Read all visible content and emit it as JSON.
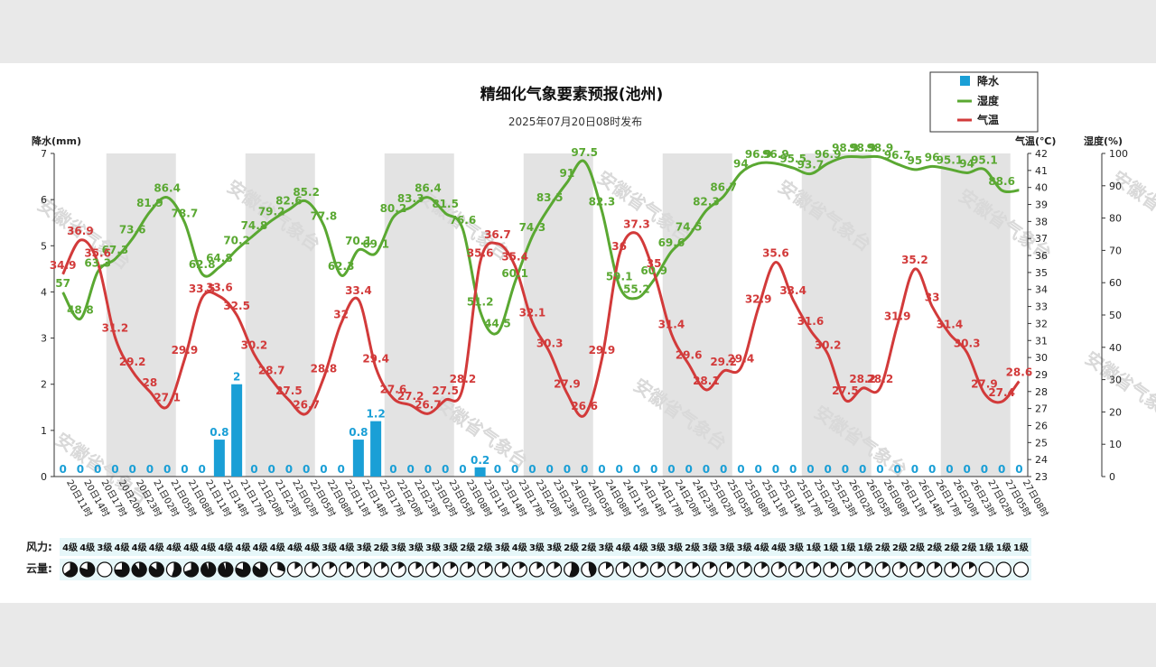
{
  "chart_data": {
    "type": "line",
    "title": "精细化气象要素预报(池州)",
    "subtitle": "2025年07月20日08时发布",
    "watermark": "安徽省气象台",
    "ylabel_left": "降水(mm)",
    "ylabel_temp": "气温(℃)",
    "ylabel_hum": "湿度(%)",
    "ylim_rain": [
      0,
      7
    ],
    "ylim_temp": [
      23,
      42
    ],
    "ylim_hum": [
      0,
      100
    ],
    "rain_ticks": [
      "0",
      "1",
      "2",
      "3",
      "4",
      "5",
      "6",
      "7"
    ],
    "temp_ticks": [
      "23",
      "24",
      "25",
      "26",
      "27",
      "28",
      "29",
      "30",
      "31",
      "32",
      "33",
      "34",
      "35",
      "36",
      "37",
      "38",
      "39",
      "40",
      "41",
      "42"
    ],
    "hum_ticks": [
      "0",
      "10",
      "20",
      "30",
      "40",
      "50",
      "60",
      "70",
      "80",
      "90",
      "100"
    ],
    "legend": [
      "降水",
      "湿度",
      "气温"
    ],
    "categories": [
      "20日11时",
      "20日14时",
      "20日17时",
      "20日20时",
      "20日23时",
      "21日02时",
      "21日05时",
      "21日08时",
      "21日11时",
      "21日14时",
      "21日17时",
      "21日20时",
      "21日23时",
      "22日02时",
      "22日05时",
      "22日08时",
      "22日11时",
      "22日14时",
      "22日17时",
      "22日20时",
      "22日23时",
      "23日02时",
      "23日05时",
      "23日08时",
      "23日11时",
      "23日14时",
      "23日17时",
      "23日20时",
      "23日23时",
      "24日02时",
      "24日05时",
      "24日08时",
      "24日11时",
      "24日14时",
      "24日17时",
      "24日20时",
      "24日23时",
      "25日02时",
      "25日05时",
      "25日08时",
      "25日11时",
      "25日14时",
      "25日17时",
      "25日20时",
      "25日23时",
      "26日02时",
      "26日05时",
      "26日08时",
      "26日11时",
      "26日14时",
      "26日17时",
      "26日20时",
      "26日23时",
      "27日02时",
      "27日05时",
      "27日08时"
    ],
    "series": [
      {
        "name": "降水",
        "type": "bar",
        "color": "#1a9fd6",
        "values": [
          0,
          0,
          0,
          0,
          0,
          0,
          0,
          0,
          0,
          0.8,
          2,
          0,
          0,
          0,
          0,
          0,
          0,
          0.8,
          1.2,
          0,
          0,
          0,
          0,
          0,
          0.2,
          0,
          0,
          0,
          0,
          0,
          0,
          0,
          0,
          0,
          0,
          0,
          0,
          0,
          0,
          0,
          0,
          0,
          0,
          0,
          0,
          0,
          0,
          0,
          0,
          0,
          0,
          0,
          0,
          0,
          0,
          0
        ],
        "labels": [
          "0",
          "0",
          "0",
          "0",
          "0",
          "0",
          "0",
          "0",
          "0",
          "0.8",
          "2",
          "0",
          "0",
          "0",
          "0",
          "0",
          "0",
          "0.8",
          "1.2",
          "0",
          "0",
          "0",
          "0",
          "0",
          "0.2",
          "0",
          "0",
          "0",
          "0",
          "0",
          "0",
          "0",
          "0",
          "0",
          "0",
          "0",
          "0",
          "0",
          "0",
          "0",
          "0",
          "0",
          "0",
          "0",
          "0",
          "0",
          "0",
          "0",
          "0",
          "0",
          "0",
          "0",
          "0",
          "0",
          "0",
          "0"
        ]
      },
      {
        "name": "湿度",
        "type": "line",
        "color": "#5aa832",
        "values": [
          57,
          48.8,
          63.3,
          67.3,
          73.6,
          81.9,
          86.4,
          78.7,
          62.8,
          64.8,
          70.2,
          74.8,
          79.2,
          82.6,
          85.2,
          77.8,
          62.3,
          70.1,
          69.1,
          80.2,
          83.3,
          86.4,
          81.5,
          76.6,
          51.2,
          44.5,
          60.1,
          74.3,
          83.5,
          91,
          97.5,
          82.3,
          59.1,
          55.2,
          60.9,
          69.6,
          74.5,
          82.3,
          86.7,
          94,
          96.9,
          96.9,
          95.5,
          93.7,
          96.9,
          98.9,
          98.9,
          98.9,
          96.7,
          95,
          96,
          95.1,
          94,
          95.1,
          88.6,
          88.6
        ],
        "labels": [
          "57",
          "48.8",
          "63.3",
          "67.3",
          "73.6",
          "81.9",
          "86.4",
          "78.7",
          "62.8",
          "64.8",
          "70.2",
          "74.8",
          "79.2",
          "82.6",
          "85.2",
          "77.8",
          "62.3",
          "70.1",
          "69.1",
          "80.2",
          "83.3",
          "86.4",
          "81.5",
          "76.6",
          "51.2",
          "44.5",
          "60.1",
          "74.3",
          "83.5",
          "91",
          "97.5",
          "82.3",
          "59.1",
          "55.2",
          "60.9",
          "69.6",
          "74.5",
          "82.3",
          "86.7",
          "94",
          "96.9",
          "96.9",
          "95.5",
          "93.7",
          "96.9",
          "98.9",
          "98.9",
          "98.9",
          "96.7",
          "95",
          "96",
          "95.1",
          "94",
          "95.1",
          "88.6",
          ""
        ]
      },
      {
        "name": "气温",
        "type": "line",
        "color": "#d23a3a",
        "values": [
          34.9,
          36.9,
          35.6,
          31.2,
          29.2,
          28,
          27.1,
          29.9,
          33.5,
          33.6,
          32.5,
          30.2,
          28.7,
          27.5,
          26.7,
          28.8,
          32,
          33.4,
          29.4,
          27.6,
          27.2,
          26.7,
          27.5,
          28.2,
          35.6,
          36.7,
          35.4,
          32.1,
          30.3,
          27.9,
          26.6,
          29.9,
          36,
          37.3,
          35,
          31.4,
          29.6,
          28.1,
          29.2,
          29.4,
          32.9,
          35.6,
          33.4,
          31.6,
          30.2,
          27.5,
          28.2,
          28.2,
          31.9,
          35.2,
          33,
          31.4,
          30.3,
          27.9,
          27.4,
          28.6
        ],
        "labels": [
          "34.9",
          "36.9",
          "35.6",
          "31.2",
          "29.2",
          "28",
          "27.1",
          "29.9",
          "33.5",
          "33.6",
          "32.5",
          "30.2",
          "28.7",
          "27.5",
          "26.7",
          "28.8",
          "32",
          "33.4",
          "29.4",
          "27.6",
          "27.2",
          "26.7",
          "27.5",
          "28.2",
          "35.6",
          "36.7",
          "35.4",
          "32.1",
          "30.3",
          "27.9",
          "26.6",
          "29.9",
          "36",
          "37.3",
          "35",
          "31.4",
          "29.6",
          "28.1",
          "29.2",
          "29.4",
          "32.9",
          "35.6",
          "33.4",
          "31.6",
          "30.2",
          "27.5",
          "28.2",
          "28.2",
          "31.9",
          "35.2",
          "33",
          "31.4",
          "30.3",
          "27.9",
          "27.4",
          "28.6"
        ]
      }
    ],
    "wind_label": "风力:",
    "wind": [
      "4级",
      "4级",
      "3级",
      "4级",
      "4级",
      "4级",
      "4级",
      "4级",
      "4级",
      "4级",
      "4级",
      "4级",
      "4级",
      "4级",
      "4级",
      "3级",
      "4级",
      "3级",
      "2级",
      "3级",
      "3级",
      "3级",
      "3级",
      "2级",
      "2级",
      "3级",
      "4级",
      "3级",
      "3级",
      "2级",
      "2级",
      "3级",
      "4级",
      "4级",
      "3级",
      "3级",
      "2级",
      "3级",
      "3级",
      "3级",
      "4级",
      "4级",
      "3级",
      "1级",
      "1级",
      "1级",
      "1级",
      "2级",
      "2级",
      "2级",
      "2级",
      "2级",
      "2级",
      "1级",
      "1级",
      "1级"
    ],
    "cloud_label": "云量:",
    "cloud": [
      0.65,
      0.8,
      0,
      0.75,
      0.9,
      0.85,
      0.55,
      0.7,
      0.95,
      0.95,
      0.8,
      0.85,
      0.3,
      0.15,
      0.15,
      0.15,
      0.15,
      0.15,
      0.15,
      0.15,
      0.15,
      0.15,
      0.15,
      0.15,
      0.15,
      0.15,
      0.15,
      0.15,
      0.15,
      0.55,
      0.45,
      0.15,
      0.15,
      0.15,
      0.15,
      0.15,
      0.15,
      0.15,
      0.15,
      0.15,
      0.15,
      0.15,
      0.15,
      0.15,
      0.15,
      0.15,
      0.15,
      0.15,
      0.15,
      0.15,
      0.15,
      0.15,
      0.15,
      0,
      0,
      0
    ]
  }
}
